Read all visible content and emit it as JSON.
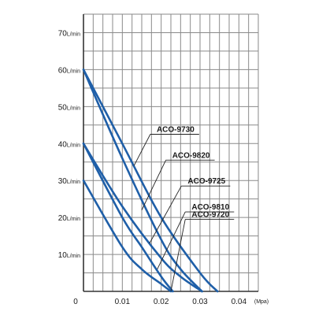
{
  "chart_data": {
    "type": "line",
    "title": "",
    "x_axis": {
      "min": 0,
      "max": 0.045,
      "ticks": [
        0,
        0.01,
        0.02,
        0.03,
        0.04
      ],
      "tick_labels": [
        "0",
        "0.01",
        "0.02",
        "0.03",
        "0.04"
      ],
      "unit": "(Mpa)"
    },
    "y_axis": {
      "min": 0,
      "max": 75,
      "ticks": [
        10,
        20,
        30,
        40,
        50,
        60,
        70
      ],
      "tick_labels": [
        "10",
        "20",
        "30",
        "40",
        "50",
        "60",
        "70"
      ],
      "unit": "L/min"
    },
    "grid": true,
    "series": [
      {
        "name": "ACO-9730",
        "points": [
          [
            0,
            60
          ],
          [
            0.01,
            40
          ],
          [
            0.02,
            20
          ],
          [
            0.03,
            5
          ],
          [
            0.0345,
            0
          ]
        ]
      },
      {
        "name": "ACO-9820",
        "points": [
          [
            0,
            60
          ],
          [
            0.01,
            36
          ],
          [
            0.02,
            14
          ],
          [
            0.025,
            6
          ],
          [
            0.0305,
            0
          ]
        ]
      },
      {
        "name": "ACO-9725",
        "points": [
          [
            0,
            40
          ],
          [
            0.01,
            23
          ],
          [
            0.02,
            9
          ],
          [
            0.025,
            4
          ],
          [
            0.0305,
            0
          ]
        ]
      },
      {
        "name": "ACO-9810",
        "points": [
          [
            0,
            40
          ],
          [
            0.01,
            20
          ],
          [
            0.015,
            12
          ],
          [
            0.02,
            4
          ],
          [
            0.023,
            0
          ]
        ]
      },
      {
        "name": "ACO-9720",
        "points": [
          [
            0,
            30
          ],
          [
            0.01,
            12
          ],
          [
            0.015,
            6
          ],
          [
            0.02,
            2
          ],
          [
            0.0225,
            0
          ]
        ]
      }
    ],
    "annotations": [
      {
        "text": "ACO-9730",
        "series": "ACO-9730",
        "x": 0.0245,
        "y": 44,
        "pointer_to": [
          0.013,
          34
        ]
      },
      {
        "text": "ACO-9820",
        "series": "ACO-9820",
        "x": 0.0285,
        "y": 37,
        "pointer_to": [
          0.015,
          22
        ]
      },
      {
        "text": "ACO-9725",
        "series": "ACO-9725",
        "x": 0.0325,
        "y": 30,
        "pointer_to": [
          0.017,
          13
        ]
      },
      {
        "text": "ACO-9810",
        "series": "ACO-9810",
        "x": 0.0335,
        "y": 23,
        "pointer_to": [
          0.019,
          6
        ]
      },
      {
        "text": "ACO-9720",
        "series": "ACO-9720",
        "x": 0.0335,
        "y": 21,
        "pointer_to": [
          0.0225,
          0
        ]
      }
    ],
    "colors": {
      "line": "#1f5fa8",
      "grid": "#8a8a8a",
      "text": "#1a1a1a"
    }
  }
}
